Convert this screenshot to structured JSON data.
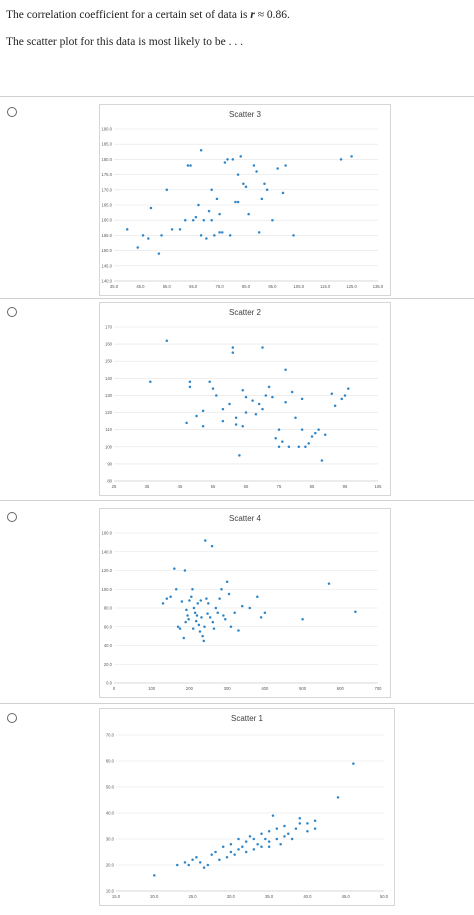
{
  "question": {
    "line1_prefix": "The correlation coefficient for a certain set of data is",
    "line1_var": "r",
    "line1_value": "≈ 0.86.",
    "line2": "The scatter plot for this data is most likely to be . . ."
  },
  "options": [
    {
      "id": "s3",
      "title": "Scatter 3"
    },
    {
      "id": "s2",
      "title": "Scatter 2"
    },
    {
      "id": "s4",
      "title": "Scatter 4"
    },
    {
      "id": "s1",
      "title": "Scatter 1"
    }
  ],
  "chart_data": [
    {
      "type": "scatter",
      "title": "Scatter 3",
      "xlim": [
        35,
        135
      ],
      "ylim": [
        140,
        190
      ],
      "xticks": [
        "35.0",
        "45.0",
        "55.0",
        "65.0",
        "75.0",
        "85.0",
        "95.0",
        "105.0",
        "115.0",
        "125.0",
        "135.0"
      ],
      "yticks": [
        "140.0",
        "145.0",
        "150.0",
        "155.0",
        "160.0",
        "165.0",
        "170.0",
        "175.0",
        "180.0",
        "185.0",
        "190.0"
      ],
      "x": [
        40,
        44,
        46,
        48,
        49,
        52,
        53,
        55,
        57,
        60,
        62,
        63,
        64,
        65,
        66,
        67,
        68,
        68,
        69,
        70,
        71,
        72,
        72,
        73,
        74,
        75,
        75,
        76,
        77,
        78,
        79,
        80,
        81,
        82,
        82,
        83,
        84,
        85,
        86,
        88,
        89,
        90,
        91,
        92,
        93,
        95,
        97,
        99,
        100,
        103,
        121,
        125
      ],
      "y": [
        157,
        151,
        155,
        154,
        164,
        149,
        155,
        170,
        157,
        157,
        160,
        178,
        178,
        160,
        161,
        165,
        155,
        183,
        160,
        154,
        163,
        170,
        160,
        155,
        167,
        162,
        156,
        156,
        179,
        180,
        155,
        180,
        166,
        166,
        175,
        181,
        172,
        171,
        162,
        178,
        176,
        156,
        167,
        172,
        170,
        160,
        177,
        169,
        178,
        155,
        180,
        181
      ]
    },
    {
      "type": "scatter",
      "title": "Scatter 2",
      "xlim": [
        25,
        105
      ],
      "ylim": [
        80,
        170
      ],
      "xticks": [
        "25",
        "35",
        "45",
        "55",
        "65",
        "75",
        "85",
        "95",
        "105"
      ],
      "yticks": [
        "80",
        "90",
        "100",
        "110",
        "120",
        "130",
        "140",
        "150",
        "160",
        "170"
      ],
      "x": [
        36,
        41,
        47,
        48,
        48,
        50,
        52,
        52,
        54,
        55,
        56,
        58,
        58,
        60,
        61,
        61,
        62,
        62,
        63,
        64,
        64,
        65,
        65,
        67,
        68,
        69,
        70,
        70,
        71,
        72,
        73,
        74,
        75,
        75,
        76,
        77,
        77,
        78,
        79,
        80,
        81,
        82,
        82,
        83,
        84,
        85,
        86,
        87,
        88,
        89,
        91,
        92
      ],
      "y": [
        138,
        162,
        114,
        135,
        138,
        118,
        112,
        121,
        138,
        134,
        130,
        122,
        115,
        125,
        155,
        158,
        117,
        113,
        95,
        133,
        112,
        120,
        129,
        127,
        119,
        125,
        158,
        122,
        130,
        135,
        129,
        105,
        100,
        110,
        103,
        145,
        126,
        100,
        132,
        117,
        100,
        110,
        128,
        100,
        102,
        106,
        108,
        110,
        92,
        107,
        131,
        124
      ],
      "extra_x": [
        94,
        95,
        96
      ],
      "extra_y": [
        128,
        130,
        134
      ]
    },
    {
      "type": "scatter",
      "title": "Scatter 4",
      "xlim": [
        0,
        700
      ],
      "ylim": [
        0,
        160
      ],
      "xticks": [
        "0",
        "100",
        "200",
        "300",
        "400",
        "500",
        "600",
        "700"
      ],
      "yticks": [
        "0.0",
        "20.0",
        "40.0",
        "60.0",
        "80.0",
        "100.0",
        "120.0",
        "140.0",
        "160.0"
      ],
      "x": [
        130,
        140,
        150,
        160,
        165,
        170,
        175,
        180,
        185,
        188,
        190,
        192,
        195,
        198,
        200,
        205,
        208,
        210,
        212,
        215,
        218,
        220,
        222,
        225,
        228,
        230,
        232,
        235,
        238,
        240,
        242,
        245,
        248,
        250,
        255,
        260,
        262,
        265,
        270,
        275,
        280,
        285,
        290,
        295,
        300,
        305,
        310,
        320,
        330,
        340,
        360,
        380,
        390,
        400,
        500,
        570,
        640
      ],
      "y": [
        85,
        90,
        92,
        122,
        100,
        60,
        58,
        87,
        48,
        120,
        65,
        78,
        72,
        68,
        88,
        92,
        100,
        58,
        80,
        75,
        66,
        72,
        85,
        62,
        55,
        88,
        70,
        50,
        45,
        60,
        152,
        90,
        74,
        85,
        70,
        146,
        65,
        58,
        80,
        75,
        90,
        100,
        72,
        68,
        108,
        95,
        60,
        75,
        56,
        82,
        80,
        92,
        70,
        75,
        68,
        106,
        76
      ]
    },
    {
      "type": "scatter",
      "title": "Scatter 1",
      "xlim": [
        15,
        50
      ],
      "ylim": [
        10,
        70
      ],
      "xticks": [
        "15.0",
        "20.0",
        "25.0",
        "30.0",
        "35.0",
        "40.0",
        "45.0",
        "50.0"
      ],
      "yticks": [
        "10.0",
        "20.0",
        "30.0",
        "40.0",
        "50.0",
        "60.0",
        "70.0"
      ],
      "x": [
        20,
        23,
        24,
        24.5,
        25,
        25.5,
        26,
        26.5,
        27,
        27.5,
        28,
        28.5,
        29,
        29.5,
        30,
        30,
        30.5,
        31,
        31,
        31.5,
        32,
        32,
        32.5,
        33,
        33,
        33.5,
        34,
        34,
        34.5,
        35,
        35,
        35,
        35.5,
        36,
        36,
        36.5,
        37,
        37,
        37.5,
        38,
        38.5,
        39,
        39,
        40,
        40,
        41,
        41,
        44,
        46
      ],
      "y": [
        16,
        20,
        21,
        20,
        22,
        23,
        21,
        19,
        20,
        24,
        25,
        22,
        27,
        23,
        28,
        25,
        24,
        26,
        30,
        27,
        25,
        29,
        31,
        26,
        30,
        28,
        32,
        27,
        30,
        33,
        29,
        27,
        39,
        30,
        34,
        28,
        31,
        35,
        32,
        30,
        34,
        36,
        38,
        33,
        36,
        34,
        37,
        46,
        59
      ]
    }
  ]
}
